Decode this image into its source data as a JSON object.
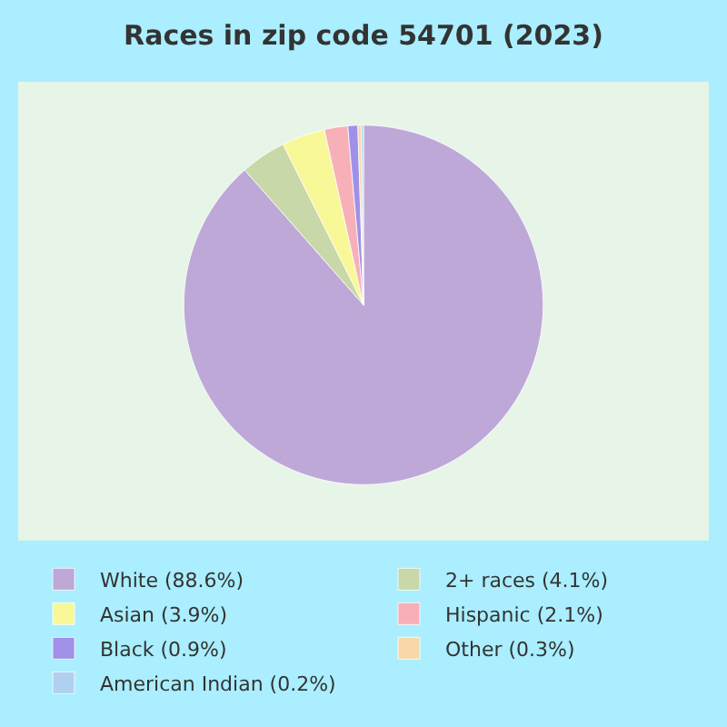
{
  "chart_data": {
    "type": "pie",
    "title": "Races in zip code 54701 (2023)",
    "categories": [
      "White (88.6%)",
      "2+ races (4.1%)",
      "Asian (3.9%)",
      "Hispanic (2.1%)",
      "Black (0.9%)",
      "Other (0.3%)",
      "American Indian (0.2%)"
    ],
    "values": [
      88.6,
      4.1,
      3.9,
      2.1,
      0.9,
      0.3,
      0.2
    ],
    "colors": [
      "#bea8d8",
      "#c8d8a8",
      "#f8f898",
      "#f8b0b8",
      "#a090e8",
      "#f8d8a8",
      "#b0d0f0"
    ],
    "legend": "bottom"
  }
}
